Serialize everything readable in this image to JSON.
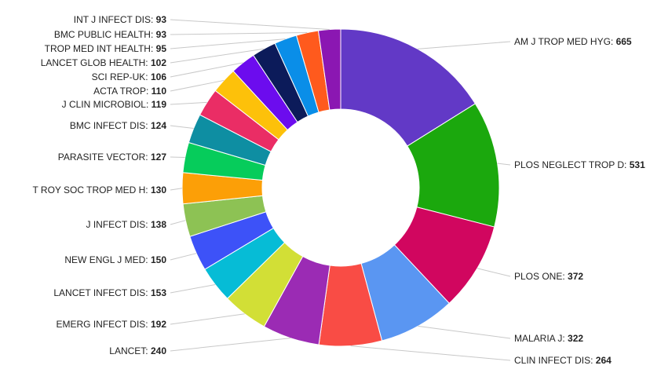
{
  "chart_data": {
    "type": "pie",
    "title": "",
    "donut": true,
    "legend": "none",
    "categories": [
      "AM J TROP MED HYG",
      "PLOS NEGLECT TROP D",
      "PLOS ONE",
      "MALARIA J",
      "CLIN INFECT DIS",
      "LANCET",
      "EMERG INFECT DIS",
      "LANCET INFECT DIS",
      "NEW ENGL J MED",
      "J INFECT DIS",
      "T ROY SOC TROP MED H",
      "PARASITE VECTOR",
      "BMC INFECT DIS",
      "J CLIN MICROBIOL",
      "ACTA TROP",
      "SCI REP-UK",
      "LANCET GLOB HEALTH",
      "TROP MED INT HEALTH",
      "BMC PUBLIC HEALTH",
      "INT J INFECT DIS"
    ],
    "values": [
      665,
      531,
      372,
      322,
      264,
      240,
      192,
      153,
      150,
      138,
      130,
      127,
      124,
      119,
      110,
      106,
      102,
      95,
      93,
      93
    ],
    "colors": [
      "#6239c6",
      "#1ba80d",
      "#d1065f",
      "#5a96f2",
      "#f94c45",
      "#9b2bb4",
      "#d2df36",
      "#06bcd6",
      "#3d52f8",
      "#8dc254",
      "#fc9f07",
      "#06cc5b",
      "#0e8ea2",
      "#ea2d65",
      "#fdc10a",
      "#6c0cee",
      "#0c1b5a",
      "#0a8ee8",
      "#ff5a1d",
      "#8b17b2"
    ]
  }
}
